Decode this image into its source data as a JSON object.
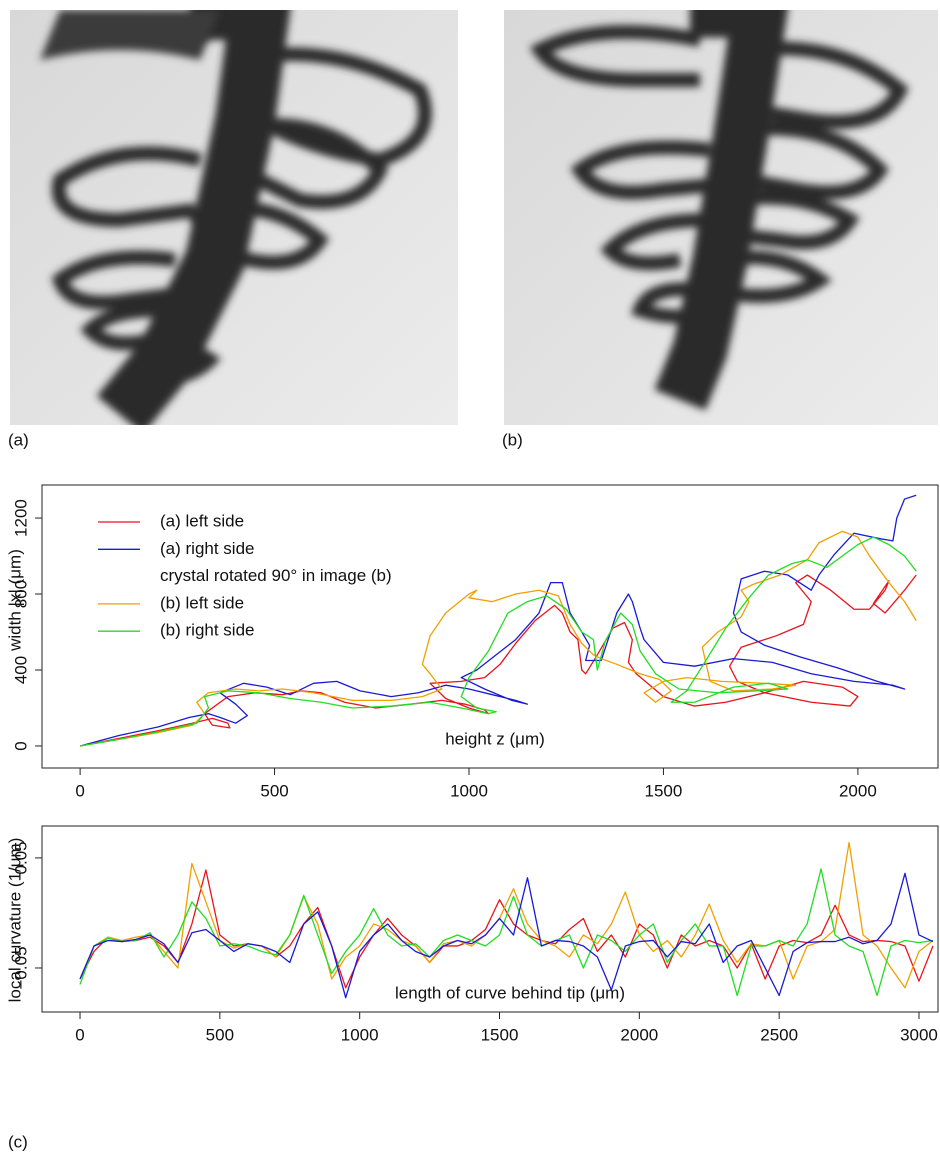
{
  "panels": [
    "(a)",
    "(b)",
    "(c)"
  ],
  "chart_data": [
    {
      "type": "line",
      "x_label": "height z (μm)",
      "y_label": "width |x| (μm)",
      "legend": "top-left",
      "legend_note": "crystal rotated 90° in image (b)",
      "xlim": [
        -98,
        2206
      ],
      "xticks": [
        0,
        500,
        1000,
        1500,
        2000
      ],
      "ylim": [
        -116,
        1374
      ],
      "yticks": [
        0,
        400,
        800,
        1200
      ],
      "series": [
        {
          "name": "(a) left side",
          "color": "#e8141c",
          "x": [
            0,
            100,
            200,
            290,
            340,
            380,
            385,
            340,
            320,
            380,
            450,
            520,
            570,
            620,
            680,
            760,
            850,
            930,
            990,
            1040,
            1050,
            1000,
            940,
            900,
            980,
            1040,
            1080,
            1120,
            1170,
            1220,
            1240,
            1260,
            1280,
            1290,
            1300,
            1330,
            1370,
            1400,
            1420,
            1410,
            1430,
            1500,
            1580,
            1660,
            1760,
            1860,
            1960,
            2000,
            1980,
            1880,
            1760,
            1690,
            1670,
            1700,
            1790,
            1860,
            1880,
            1840,
            1870,
            1930,
            1990,
            2030,
            2070,
            2080,
            2040,
            2070,
            2120,
            2150
          ],
          "values": [
            0,
            40,
            80,
            120,
            145,
            120,
            95,
            110,
            170,
            260,
            280,
            270,
            290,
            280,
            230,
            200,
            220,
            240,
            220,
            190,
            170,
            200,
            250,
            330,
            340,
            360,
            430,
            540,
            660,
            740,
            700,
            600,
            560,
            400,
            380,
            480,
            620,
            650,
            560,
            440,
            380,
            260,
            210,
            230,
            280,
            340,
            310,
            260,
            210,
            230,
            280,
            340,
            420,
            520,
            580,
            640,
            760,
            860,
            900,
            820,
            720,
            720,
            820,
            870,
            750,
            700,
            820,
            900
          ]
        },
        {
          "name": "(a) right side",
          "color": "#1a1ad6",
          "x": [
            0,
            100,
            200,
            280,
            330,
            360,
            400,
            430,
            400,
            360,
            420,
            480,
            540,
            600,
            660,
            720,
            800,
            870,
            940,
            1000,
            1060,
            1120,
            1150,
            1110,
            1040,
            980,
            1020,
            1070,
            1120,
            1180,
            1210,
            1240,
            1260,
            1290,
            1310,
            1300,
            1340,
            1380,
            1410,
            1420,
            1440,
            1450,
            1500,
            1580,
            1680,
            1780,
            1880,
            1990,
            2090,
            2120,
            2050,
            1950,
            1850,
            1760,
            1700,
            1680,
            1700,
            1760,
            1820,
            1880,
            1900,
            1940,
            1990,
            2060,
            2090,
            2100,
            2120,
            2150
          ],
          "values": [
            0,
            55,
            100,
            150,
            170,
            150,
            120,
            160,
            220,
            280,
            330,
            310,
            270,
            330,
            340,
            290,
            260,
            280,
            320,
            300,
            270,
            240,
            220,
            240,
            300,
            360,
            400,
            480,
            560,
            700,
            860,
            860,
            700,
            600,
            530,
            450,
            450,
            700,
            800,
            760,
            620,
            560,
            440,
            420,
            460,
            440,
            380,
            340,
            320,
            300,
            340,
            410,
            470,
            530,
            600,
            700,
            880,
            920,
            900,
            820,
            900,
            1010,
            1120,
            1090,
            1080,
            1200,
            1300,
            1320
          ]
        },
        {
          "name": "(b) left side",
          "color": "#f0a000",
          "x": [
            0,
            100,
            200,
            290,
            320,
            300,
            330,
            400,
            460,
            520,
            600,
            700,
            800,
            880,
            930,
            900,
            880,
            900,
            940,
            1000,
            1020,
            1000,
            1060,
            1120,
            1180,
            1230,
            1260,
            1290,
            1320,
            1340,
            1380,
            1440,
            1490,
            1520,
            1480,
            1450,
            1500,
            1560,
            1650,
            1760,
            1840,
            1780,
            1680,
            1620,
            1600,
            1640,
            1700,
            1720,
            1700,
            1730,
            1800,
            1870,
            1900,
            1960,
            2000,
            2030,
            2080,
            2120,
            2150
          ],
          "values": [
            0,
            35,
            70,
            110,
            170,
            230,
            280,
            300,
            290,
            300,
            280,
            240,
            240,
            260,
            300,
            380,
            430,
            580,
            700,
            800,
            820,
            780,
            760,
            800,
            820,
            790,
            640,
            540,
            480,
            460,
            430,
            380,
            350,
            290,
            230,
            280,
            340,
            360,
            340,
            330,
            320,
            300,
            290,
            340,
            520,
            600,
            680,
            760,
            820,
            850,
            900,
            980,
            1070,
            1130,
            1100,
            1000,
            860,
            760,
            660
          ]
        },
        {
          "name": "(b) right side",
          "color": "#22dd22",
          "x": [
            0,
            100,
            200,
            300,
            330,
            320,
            380,
            460,
            540,
            620,
            700,
            800,
            900,
            980,
            1050,
            1070,
            1020,
            980,
            1000,
            1050,
            1100,
            1150,
            1200,
            1250,
            1290,
            1320,
            1330,
            1350,
            1390,
            1420,
            1440,
            1480,
            1540,
            1640,
            1740,
            1820,
            1770,
            1680,
            1580,
            1520,
            1560,
            1600,
            1660,
            1720,
            1770,
            1830,
            1870,
            1920,
            1960,
            2000,
            2040,
            2080,
            2120,
            2150
          ],
          "values": [
            0,
            35,
            75,
            120,
            200,
            260,
            290,
            280,
            250,
            230,
            200,
            210,
            230,
            200,
            170,
            180,
            200,
            260,
            360,
            500,
            700,
            760,
            790,
            720,
            600,
            560,
            400,
            550,
            700,
            640,
            500,
            380,
            300,
            280,
            290,
            300,
            330,
            310,
            230,
            230,
            290,
            420,
            620,
            780,
            900,
            960,
            980,
            940,
            1000,
            1060,
            1100,
            1060,
            1000,
            920
          ]
        }
      ]
    },
    {
      "type": "line",
      "x_label": "length of curve behind tip (μm)",
      "y_label": "local curvature (1/μm)",
      "xlim": [
        -136,
        3068
      ],
      "xticks": [
        0,
        500,
        1000,
        1500,
        2000,
        2500,
        3000
      ],
      "ylim": [
        -0.09,
        0.079
      ],
      "yticks": [
        {
          "value": -0.05,
          "label": "−0.05"
        },
        0.05
      ],
      "x": [
        0,
        50,
        100,
        150,
        200,
        250,
        300,
        350,
        400,
        450,
        500,
        550,
        600,
        650,
        700,
        750,
        800,
        850,
        900,
        950,
        1000,
        1050,
        1100,
        1150,
        1200,
        1250,
        1300,
        1350,
        1400,
        1450,
        1500,
        1550,
        1600,
        1650,
        1700,
        1750,
        1800,
        1850,
        1900,
        1950,
        2000,
        2050,
        2100,
        2150,
        2200,
        2250,
        2300,
        2350,
        2400,
        2450,
        2500,
        2550,
        2600,
        2650,
        2700,
        2750,
        2800,
        2850,
        2900,
        2950,
        3000,
        3050
      ],
      "series": [
        {
          "name": "(a) left side",
          "color": "#e8141c",
          "values": [
            -0.06,
            -0.035,
            -0.022,
            -0.026,
            -0.025,
            -0.022,
            -0.03,
            -0.045,
            -0.01,
            0.039,
            -0.02,
            -0.03,
            -0.028,
            -0.03,
            -0.04,
            -0.03,
            -0.01,
            0.005,
            -0.03,
            -0.068,
            -0.04,
            -0.02,
            -0.005,
            -0.02,
            -0.03,
            -0.045,
            -0.03,
            -0.03,
            -0.025,
            -0.015,
            0.012,
            -0.01,
            -0.02,
            -0.025,
            -0.028,
            -0.015,
            -0.005,
            -0.035,
            -0.02,
            -0.04,
            -0.01,
            -0.02,
            -0.05,
            -0.02,
            -0.03,
            -0.025,
            -0.03,
            -0.05,
            -0.028,
            -0.06,
            -0.03,
            -0.025,
            -0.027,
            -0.02,
            0.007,
            -0.02,
            -0.026,
            -0.025,
            -0.026,
            -0.03,
            -0.062,
            -0.03
          ]
        },
        {
          "name": "(b) left side",
          "color": "#f0a000",
          "values": [
            -0.06,
            -0.03,
            -0.022,
            -0.025,
            -0.022,
            -0.02,
            -0.035,
            -0.05,
            0.045,
            0.01,
            -0.025,
            -0.032,
            -0.028,
            -0.03,
            -0.04,
            -0.02,
            0.015,
            -0.01,
            -0.06,
            -0.04,
            -0.03,
            -0.01,
            -0.015,
            -0.025,
            -0.03,
            -0.045,
            -0.028,
            -0.025,
            -0.03,
            -0.02,
            -0.005,
            0.022,
            -0.01,
            -0.025,
            -0.03,
            -0.04,
            -0.02,
            -0.028,
            -0.01,
            0.019,
            -0.02,
            -0.035,
            -0.025,
            -0.04,
            -0.02,
            0.008,
            -0.025,
            -0.045,
            -0.028,
            -0.03,
            -0.025,
            -0.06,
            -0.03,
            -0.026,
            -0.015,
            0.064,
            -0.02,
            -0.03,
            -0.05,
            -0.068,
            -0.035,
            -0.025
          ]
        },
        {
          "name": "(b) right side",
          "color": "#22dd22",
          "values": [
            -0.065,
            -0.03,
            -0.023,
            -0.026,
            -0.025,
            -0.018,
            -0.04,
            -0.02,
            0.01,
            -0.005,
            -0.03,
            -0.028,
            -0.03,
            -0.035,
            -0.038,
            -0.02,
            0.016,
            -0.02,
            -0.055,
            -0.035,
            -0.02,
            0.004,
            -0.02,
            -0.03,
            -0.028,
            -0.04,
            -0.025,
            -0.02,
            -0.025,
            -0.03,
            -0.02,
            0.015,
            -0.02,
            -0.03,
            -0.025,
            -0.02,
            -0.05,
            -0.02,
            -0.025,
            -0.035,
            -0.02,
            -0.01,
            -0.045,
            -0.025,
            -0.01,
            -0.03,
            -0.03,
            -0.075,
            -0.03,
            -0.03,
            -0.025,
            -0.03,
            -0.01,
            0.04,
            -0.02,
            -0.03,
            -0.035,
            -0.075,
            -0.03,
            -0.025,
            -0.027,
            -0.025
          ]
        },
        {
          "name": "(a) right side",
          "color": "#1a1ad6",
          "values": [
            -0.06,
            -0.03,
            -0.025,
            -0.026,
            -0.024,
            -0.02,
            -0.028,
            -0.045,
            -0.018,
            -0.015,
            -0.025,
            -0.035,
            -0.028,
            -0.03,
            -0.035,
            -0.045,
            -0.01,
            0.001,
            -0.03,
            -0.077,
            -0.035,
            -0.02,
            -0.01,
            -0.025,
            -0.035,
            -0.04,
            -0.03,
            -0.025,
            -0.028,
            -0.02,
            -0.005,
            -0.02,
            0.032,
            -0.03,
            -0.025,
            -0.026,
            -0.03,
            -0.04,
            -0.07,
            -0.03,
            -0.026,
            -0.025,
            -0.04,
            -0.026,
            -0.028,
            -0.01,
            -0.045,
            -0.03,
            -0.025,
            -0.05,
            -0.075,
            -0.035,
            -0.027,
            -0.026,
            -0.026,
            -0.022,
            -0.028,
            -0.025,
            -0.01,
            0.036,
            -0.02,
            -0.026
          ]
        }
      ]
    }
  ]
}
